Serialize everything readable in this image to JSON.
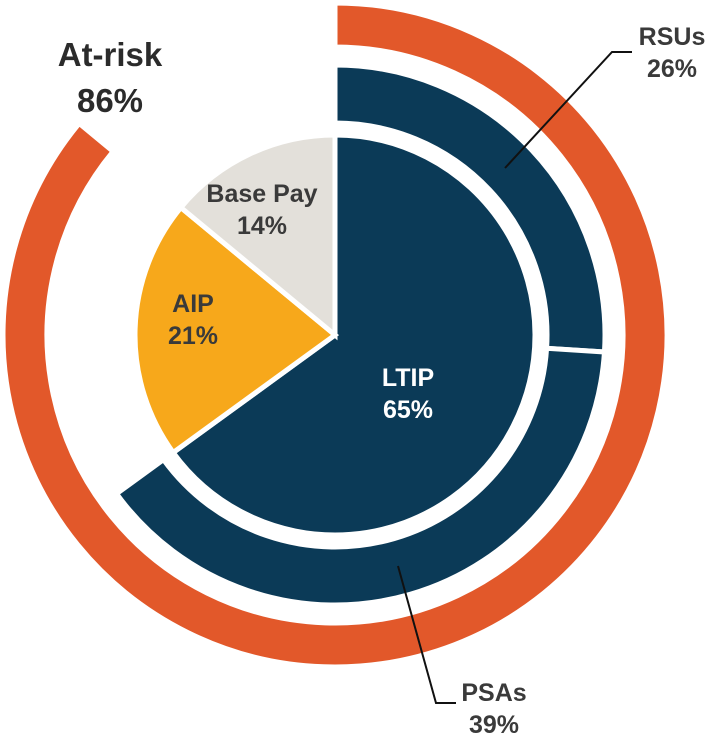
{
  "chart_data": {
    "type": "pie",
    "inner": {
      "segments": [
        {
          "name": "LTIP",
          "value": 65,
          "label": "65%",
          "color": "#0b3a57"
        },
        {
          "name": "AIP",
          "value": 21,
          "label": "21%",
          "color": "#f7a81b"
        },
        {
          "name": "Base Pay",
          "value": 14,
          "label": "14%",
          "color": "#e3e0da"
        }
      ]
    },
    "middle": {
      "segments": [
        {
          "name": "RSUs",
          "value": 26,
          "label": "26%",
          "color": "#0b3a57"
        },
        {
          "name": "PSAs",
          "value": 39,
          "label": "39%",
          "color": "#0b3a57"
        }
      ]
    },
    "outer": {
      "segments": [
        {
          "name": "At-risk",
          "value": 86,
          "label": "86%",
          "color": "#e2582a"
        }
      ]
    }
  }
}
